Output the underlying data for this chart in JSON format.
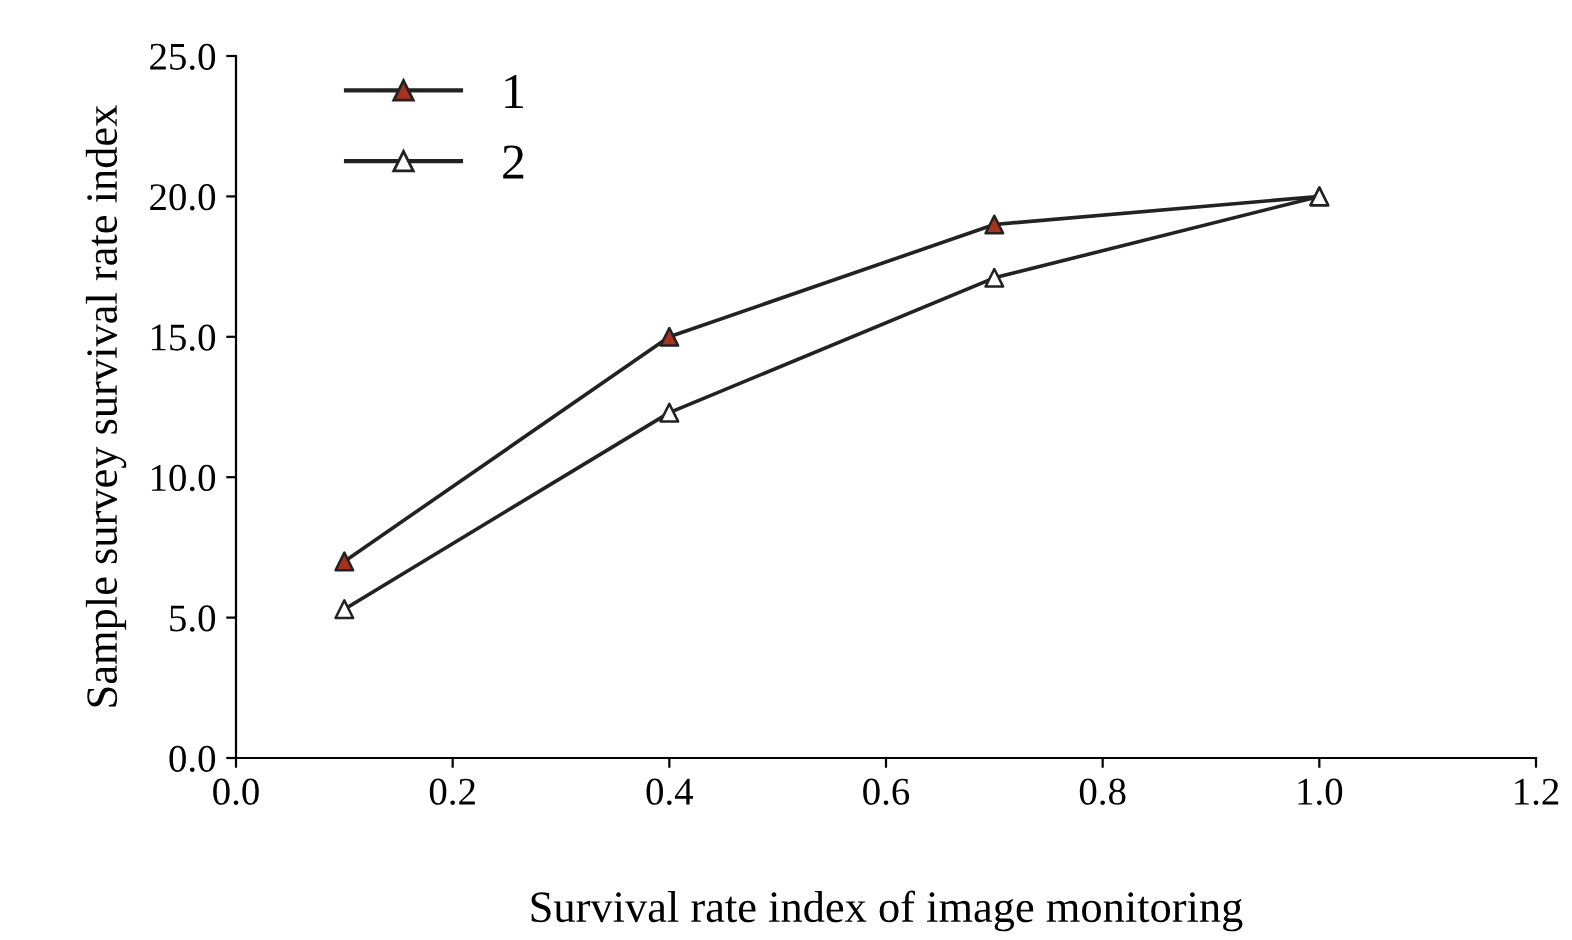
{
  "chart_data": {
    "type": "line",
    "xlabel": "Survival rate index of image monitoring",
    "ylabel": "Sample survey survival rate index",
    "x": [
      0.1,
      0.4,
      0.7,
      1.0
    ],
    "series": [
      {
        "name": "1",
        "color": "#222222",
        "colors": [
          "#a8321e",
          "#a8321e",
          "#a8321e",
          "#a8321e"
        ],
        "values": [
          7.0,
          15.0,
          19.0,
          20.0
        ]
      },
      {
        "name": "2",
        "color": "#222222",
        "colors": [
          "#ffffff",
          "#ffffff",
          "#ffffff",
          "#ffffff"
        ],
        "values": [
          5.3,
          12.3,
          17.1,
          20.0
        ]
      }
    ],
    "xlim": [
      0.0,
      1.2
    ],
    "xticks": [
      {
        "value": 0,
        "label": "0.0"
      },
      0.2,
      0.4,
      0.6,
      0.8,
      {
        "value": 1,
        "label": "1.0"
      },
      1.2
    ],
    "ylim": [
      0.0,
      25.0
    ],
    "yticks": [
      {
        "value": 0,
        "label": "0.0"
      },
      {
        "value": 5,
        "label": "5.0"
      },
      {
        "value": 10,
        "label": "10.0"
      },
      {
        "value": 15,
        "label": "15.0"
      },
      {
        "value": 20,
        "label": "20.0"
      },
      {
        "value": 25,
        "label": "25.0"
      }
    ],
    "grid": false,
    "legend": "top left",
    "marker": "triangle",
    "line_style": "solid"
  }
}
